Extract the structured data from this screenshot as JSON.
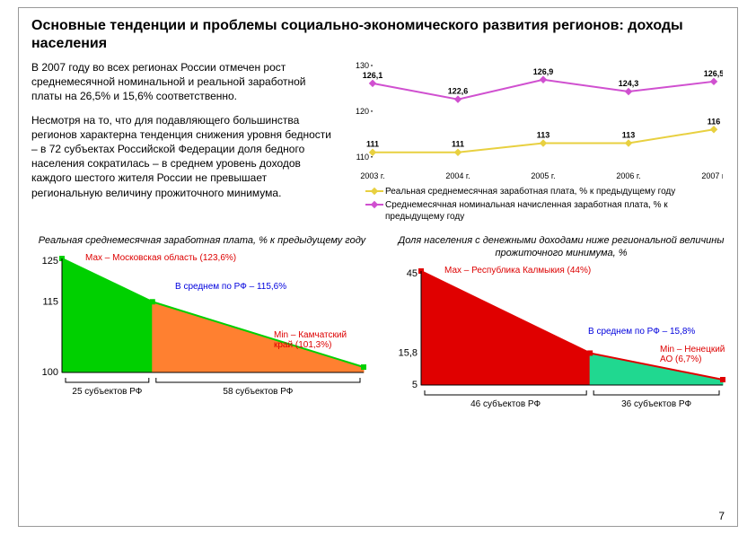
{
  "title": "Основные тенденции и проблемы социально-экономического развития регионов: доходы населения",
  "para1": "В 2007 году во всех регионах России отмечен рост среднемесячной номинальной и реальной заработной платы на 26,5% и 15,6% соответственно.",
  "para2": "Несмотря на то, что для подавляющего большинства регионов характерна тенденция снижения уровня бедности – в 72 субъектах Российской Федерации доля бедного населения сократилась – в среднем уровень доходов каждого шестого жителя России не превышает региональную величину прожиточного минимума.",
  "top_chart": {
    "type": "line",
    "x_labels": [
      "2003 г.",
      "2004 г.",
      "2005 г.",
      "2006 г.",
      "2007 г."
    ],
    "y_ticks": [
      110,
      120,
      130
    ],
    "ylim": [
      108,
      130
    ],
    "series": [
      {
        "name": "Реальная среднемесячная заработная плата, % к предыдущему году",
        "color": "#e8d040",
        "marker_color": "#e8d040",
        "values": [
          111,
          111,
          113,
          113,
          116
        ]
      },
      {
        "name": "Среднемесячная номинальная начисленная заработная плата, % к предыдущему году",
        "color": "#d050d0",
        "marker_color": "#d050d0",
        "values": [
          126.1,
          122.6,
          126.9,
          124.3,
          126.5
        ]
      }
    ],
    "label_fontsize": 9,
    "data_label_fontsize": 9,
    "background_color": "#ffffff"
  },
  "left_area": {
    "title": "Реальная среднемесячная заработная плата, % к предыдущему году",
    "type": "area",
    "y_ticks": [
      "100",
      "115",
      "125"
    ],
    "ann_max": "Мах – Московская область (123,6%)",
    "ann_avg": "В среднем по РФ – 115,6%",
    "ann_min": "Min – Камчатский край (101,3%)",
    "x_groups": [
      "25 субъектов РФ",
      "58 субъектов РФ"
    ],
    "colors": {
      "left_fill": "#00d000",
      "right_fill": "#ff8030",
      "line": "#00d000"
    },
    "points": {
      "max": 125,
      "mid": 115,
      "min": 100
    }
  },
  "right_area": {
    "title": "Доля населения с денежными доходами ниже региональной величины прожиточного минимума, %",
    "type": "area",
    "y_ticks": [
      "5",
      "15,8",
      "45"
    ],
    "ann_max": "Мах – Республика Калмыкия (44%)",
    "ann_avg": "В среднем по РФ – 15,8%",
    "ann_min": "Min – Ненецкий АО (6,7%)",
    "x_groups": [
      "46 субъектов РФ",
      "36 субъектов РФ"
    ],
    "colors": {
      "left_fill": "#e00000",
      "right_fill": "#20d890",
      "line": "#e00000"
    },
    "points": {
      "max": 45,
      "mid": 15.8,
      "min": 5
    }
  },
  "page_number": "7"
}
